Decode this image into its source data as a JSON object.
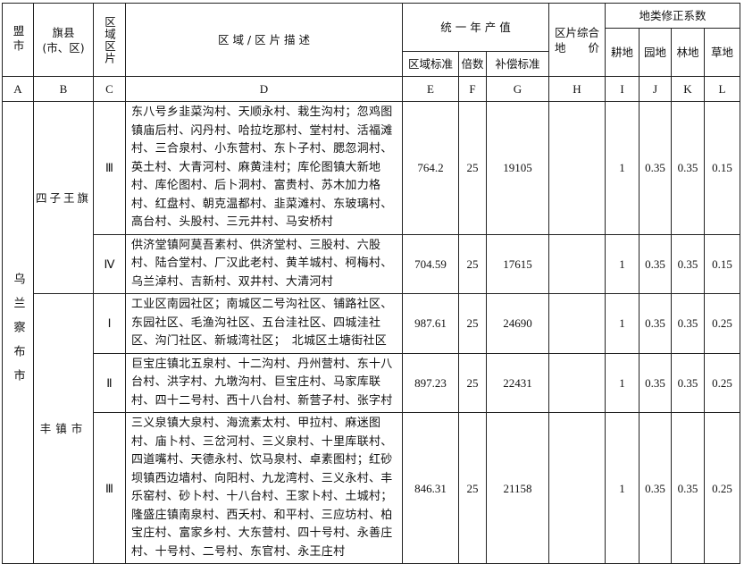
{
  "header": {
    "league_city": "盟市",
    "banner_county": "旗县\n(市、区)",
    "zone": "区域区片",
    "description": "区 域 / 区 片 描 述",
    "annual_output": "统 一 年 产 值",
    "zone_standard": "区域标准",
    "multiple": "倍数",
    "compensation_standard": "补偿标准",
    "composite_price": "区片综合\n地　　价",
    "land_coef": "地类修正系数",
    "cultivated": "耕地",
    "garden": "园地",
    "forest": "林地",
    "grass": "草地"
  },
  "letters": [
    "A",
    "B",
    "C",
    "D",
    "E",
    "F",
    "G",
    "H",
    "I",
    "J",
    "K",
    "L"
  ],
  "city": "乌兰察布市",
  "counties": [
    "四子王旗",
    "丰镇市"
  ],
  "rows": [
    {
      "zone": "Ⅲ",
      "desc": "东八号乡韭菜沟村、天顺永村、栽生沟村；忽鸡图镇庙后村、闪丹村、哈拉圪那村、堂村村、活福滩村、三合泉村、小东营村、东卜子村、腮忽洞村、英土村、大青河村、麻黄洼村；库伦图镇大新地村、库伦图村、后卜洞村、富贵村、苏木加力格村、红盘村、朝克温都村、韭菜滩村、东玻璃村、高台村、头股村、三元井村、马安桥村",
      "e": "764.2",
      "f": "25",
      "g": "19105",
      "h": "",
      "i": "1",
      "j": "0.35",
      "k": "0.35",
      "l": "0.15"
    },
    {
      "zone": "Ⅳ",
      "desc": "供济堂镇阿莫吾素村、供济堂村、三股村、六股村、陆合堂村、厂汉此老村、黄羊城村、柯梅村、乌兰淖村、吉新村、双井村、大清河村",
      "e": "704.59",
      "f": "25",
      "g": "17615",
      "h": "",
      "i": "1",
      "j": "0.35",
      "k": "0.35",
      "l": "0.15"
    },
    {
      "zone": "Ⅰ",
      "desc": "工业区南园社区；南城区二号沟社区、铺路社区、东园社区、毛渔沟社区、五台洼社区、四城洼社区、沟门社区、新城湾社区；　北城区土塘街社区",
      "e": "987.61",
      "f": "25",
      "g": "24690",
      "h": "",
      "i": "1",
      "j": "0.35",
      "k": "0.35",
      "l": "0.25"
    },
    {
      "zone": "Ⅱ",
      "desc": "巨宝庄镇北五泉村、十二沟村、丹州营村、东十八台村、洪字村、九墩沟村、巨宝庄村、马家库联村、四十二号村、西十八台村、新营子村、张字村",
      "e": "897.23",
      "f": "25",
      "g": "22431",
      "h": "",
      "i": "1",
      "j": "0.35",
      "k": "0.35",
      "l": "0.25"
    },
    {
      "zone": "Ⅲ",
      "desc": "三义泉镇大泉村、海流素太村、甲拉村、麻迷图村、庙卜村、三岔河村、三义泉村、十里库联村、四道嘴村、天德永村、饮马泉村、卓素图村；红砂坝镇西边墙村、向阳村、九龙湾村、三义永村、丰乐窑村、砂卜村、十八台村、王家卜村、土城村；隆盛庄镇南泉村、西夭村、和平村、三应坊村、柏宝庄村、富家乡村、大东营村、四十号村、永善庄村、十号村、二号村、东官村、永王庄村",
      "e": "846.31",
      "f": "25",
      "g": "21158",
      "h": "",
      "i": "1",
      "j": "0.35",
      "k": "0.35",
      "l": "0.25"
    }
  ]
}
